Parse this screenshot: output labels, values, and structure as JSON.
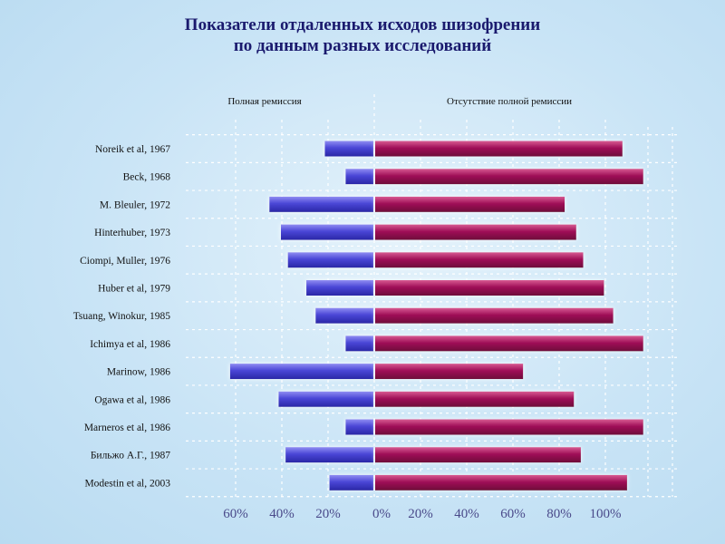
{
  "chart_data": {
    "type": "bar",
    "orientation": "horizontal-diverging",
    "title_lines": [
      "Показатели отдаленных исходов шизофрении",
      "по данным разных исследований"
    ],
    "left_header": "Полная ремиссия",
    "right_header": "Отсутствие полной ремиссии",
    "categories": [
      "Noreik et al, 1967",
      "Beck, 1968",
      "M. Bleuler, 1972",
      "Hinterhuber, 1973",
      "Ciompi, Muller, 1976",
      "Huber et al, 1979",
      "Tsuang, Winokur, 1985",
      "Ichimya et al, 1986",
      "Marinow, 1986",
      "Ogawa et al, 1986",
      "Marneros et al, 1986",
      "Бильжо А.Г., 1987",
      "Modestin et al, 2003"
    ],
    "series": [
      {
        "name": "Полная ремиссия",
        "color": "#4a46d6",
        "values": [
          21,
          12,
          45,
          40,
          37,
          29,
          25,
          12,
          62,
          41,
          12,
          38,
          19
        ]
      },
      {
        "name": "Отсутствие полной ремиссии",
        "color": "#a01058",
        "values": [
          107,
          116,
          82,
          87,
          90,
          99,
          103,
          116,
          64,
          86,
          116,
          89,
          109
        ]
      }
    ],
    "left_ticks": [
      "60%",
      "40%",
      "20%"
    ],
    "right_ticks": [
      "0%",
      "20%",
      "40%",
      "60%",
      "80%",
      "100%"
    ],
    "xlim": [
      -65,
      118
    ],
    "grid": true,
    "grid_style": "dashed"
  }
}
